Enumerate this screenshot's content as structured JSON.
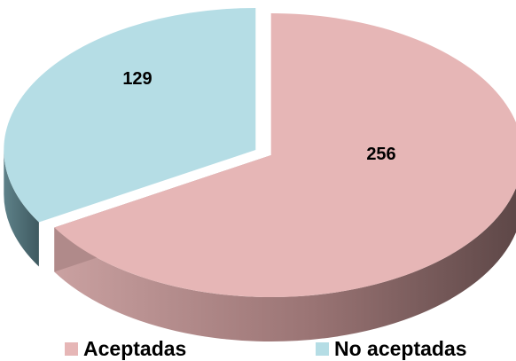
{
  "chart_data": {
    "type": "pie",
    "style": "3d-exploded",
    "categories": [
      "Aceptadas",
      "No aceptadas"
    ],
    "values": [
      256,
      129
    ],
    "colors": [
      "#e6b6b6",
      "#b5dde5"
    ],
    "side_colors": [
      "#8e6a6a",
      "#4f7078"
    ],
    "legend_position": "bottom"
  }
}
